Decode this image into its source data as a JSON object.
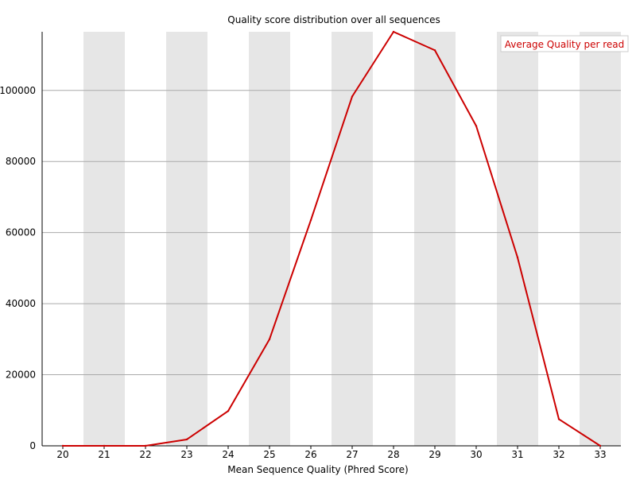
{
  "chart_data": {
    "type": "line",
    "title": "Quality score distribution over all sequences",
    "xlabel": "Mean Sequence Quality (Phred Score)",
    "ylabel": "",
    "x": [
      20,
      21,
      22,
      23,
      24,
      25,
      26,
      27,
      28,
      29,
      30,
      31,
      32,
      33
    ],
    "xlim": [
      19.5,
      33.5
    ],
    "ylim": [
      0,
      116500
    ],
    "yticks": [
      0,
      20000,
      40000,
      60000,
      80000,
      100000
    ],
    "ytick_labels": [
      "0",
      "20000",
      "40000",
      "60000",
      "80000",
      "100000"
    ],
    "grid": true,
    "alternating_bands": true,
    "legend_position": "top-right",
    "series": [
      {
        "name": "Average Quality per read",
        "color": "#cc0000",
        "values": [
          0,
          0,
          0,
          1800,
          9800,
          30000,
          63500,
          98300,
          116500,
          111300,
          90000,
          53000,
          7500,
          0
        ]
      }
    ]
  },
  "colors": {
    "band": "#e6e6e6",
    "grid": "#aaaaaa",
    "axis": "#000000",
    "text": "#000000",
    "legend_border": "#cccccc"
  }
}
